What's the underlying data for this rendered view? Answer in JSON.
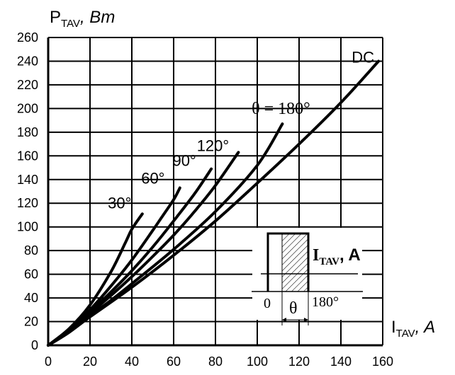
{
  "chart_data": {
    "type": "line",
    "ylabel_main": "P",
    "ylabel_sub": "TAV",
    "ylabel_unit": ", Bm",
    "xlabel_main": "I",
    "xlabel_sub": "TAV",
    "xlabel_unit": ", A",
    "xlim": [
      0,
      160
    ],
    "ylim": [
      0,
      260
    ],
    "xticks": [
      0,
      20,
      40,
      60,
      80,
      100,
      120,
      140,
      160
    ],
    "yticks": [
      0,
      20,
      40,
      60,
      80,
      100,
      120,
      140,
      160,
      180,
      200,
      220,
      240,
      260
    ],
    "grid": true,
    "series": [
      {
        "name": "30°",
        "points": [
          [
            0,
            0
          ],
          [
            10,
            14
          ],
          [
            20,
            34
          ],
          [
            30,
            62
          ],
          [
            37,
            87
          ],
          [
            40,
            98
          ],
          [
            45,
            111
          ]
        ]
      },
      {
        "name": "60°",
        "points": [
          [
            0,
            0
          ],
          [
            10,
            13
          ],
          [
            20,
            30
          ],
          [
            30,
            50
          ],
          [
            40,
            72
          ],
          [
            50,
            97
          ],
          [
            55,
            110
          ],
          [
            60,
            123
          ],
          [
            63,
            133
          ]
        ]
      },
      {
        "name": "90°",
        "points": [
          [
            0,
            0
          ],
          [
            10,
            12
          ],
          [
            20,
            28
          ],
          [
            30,
            45
          ],
          [
            40,
            63
          ],
          [
            50,
            83
          ],
          [
            60,
            105
          ],
          [
            70,
            128
          ],
          [
            78,
            149
          ]
        ]
      },
      {
        "name": "120°",
        "points": [
          [
            0,
            0
          ],
          [
            10,
            12
          ],
          [
            20,
            27
          ],
          [
            30,
            42
          ],
          [
            40,
            58
          ],
          [
            50,
            75
          ],
          [
            60,
            93
          ],
          [
            70,
            113
          ],
          [
            80,
            135
          ],
          [
            91,
            163
          ]
        ]
      },
      {
        "name": "θ = 180°",
        "points": [
          [
            0,
            0
          ],
          [
            10,
            11
          ],
          [
            20,
            25
          ],
          [
            30,
            38
          ],
          [
            40,
            52
          ],
          [
            60,
            81
          ],
          [
            80,
            113
          ],
          [
            100,
            152
          ],
          [
            112,
            187
          ]
        ]
      },
      {
        "name": "DC",
        "points": [
          [
            0,
            0
          ],
          [
            10,
            11
          ],
          [
            20,
            24
          ],
          [
            40,
            49
          ],
          [
            60,
            76
          ],
          [
            80,
            105
          ],
          [
            100,
            137
          ],
          [
            120,
            170
          ],
          [
            140,
            205
          ],
          [
            158,
            240
          ]
        ]
      }
    ],
    "inset": {
      "current_label_main": "I",
      "current_label_sub": "TAV",
      "current_label_unit": ", A",
      "start_label": "0",
      "angle_label": "θ",
      "end_label": "180°"
    }
  }
}
